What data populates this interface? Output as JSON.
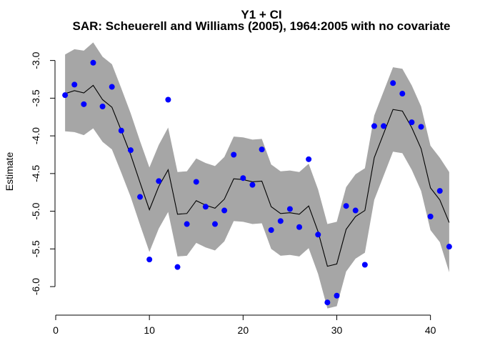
{
  "chart_data": {
    "type": "line",
    "title": "Y1 + CI",
    "subtitle": "SAR: Scheuerell and Williams (2005), 1964:2005 with no covariate",
    "xlabel": "",
    "ylabel": "Estimate",
    "xlim": [
      0,
      43
    ],
    "ylim": [
      -6.35,
      -2.7
    ],
    "x_ticks": [
      0,
      10,
      20,
      30,
      40
    ],
    "y_ticks": [
      -6.0,
      -5.5,
      -5.0,
      -4.5,
      -4.0,
      -3.5,
      -3.0
    ],
    "y_tick_labels": [
      "-6.0",
      "-5.5",
      "-5.0",
      "-4.5",
      "-4.0",
      "-3.5",
      "-3.0"
    ],
    "grid": false,
    "legend": "none",
    "colors": {
      "ci_band": "#a6a6a6",
      "estimate_line": "#000000",
      "observations": "#0000ff"
    },
    "x": [
      1,
      2,
      3,
      4,
      5,
      6,
      7,
      8,
      9,
      10,
      11,
      12,
      13,
      14,
      15,
      16,
      17,
      18,
      19,
      20,
      21,
      22,
      23,
      24,
      25,
      26,
      27,
      28,
      29,
      30,
      31,
      32,
      33,
      34,
      35,
      36,
      37,
      38,
      39,
      40,
      41,
      42
    ],
    "series": [
      {
        "type": "line",
        "values": [
          -3.44,
          -3.4,
          -3.43,
          -3.33,
          -3.52,
          -3.62,
          -3.93,
          -4.25,
          -4.62,
          -4.98,
          -4.67,
          -4.45,
          -5.04,
          -5.03,
          -4.86,
          -4.92,
          -4.96,
          -4.84,
          -4.57,
          -4.58,
          -4.61,
          -4.6,
          -4.94,
          -5.03,
          -5.02,
          -5.04,
          -4.93,
          -5.27,
          -5.73,
          -5.7,
          -5.24,
          -5.07,
          -4.99,
          -4.29,
          -3.97,
          -3.65,
          -3.67,
          -3.89,
          -4.17,
          -4.69,
          -4.85,
          -5.15
        ]
      },
      {
        "type": "band",
        "upper": [
          -2.92,
          -2.85,
          -2.87,
          -2.76,
          -2.95,
          -3.05,
          -3.37,
          -3.7,
          -4.07,
          -4.42,
          -4.12,
          -3.89,
          -4.48,
          -4.47,
          -4.3,
          -4.36,
          -4.4,
          -4.28,
          -4.01,
          -4.02,
          -4.05,
          -4.04,
          -4.38,
          -4.47,
          -4.46,
          -4.48,
          -4.37,
          -4.71,
          -5.17,
          -5.14,
          -4.68,
          -4.51,
          -4.43,
          -3.73,
          -3.41,
          -3.09,
          -3.11,
          -3.33,
          -3.61,
          -4.13,
          -4.29,
          -4.48
        ],
        "lower": [
          -3.94,
          -3.95,
          -3.99,
          -3.9,
          -4.08,
          -4.18,
          -4.49,
          -4.81,
          -5.18,
          -5.54,
          -5.23,
          -5.01,
          -5.6,
          -5.59,
          -5.42,
          -5.48,
          -5.52,
          -5.4,
          -5.13,
          -5.14,
          -5.17,
          -5.16,
          -5.5,
          -5.59,
          -5.58,
          -5.6,
          -5.49,
          -5.83,
          -6.29,
          -6.26,
          -5.8,
          -5.63,
          -5.55,
          -4.85,
          -4.53,
          -4.21,
          -4.23,
          -4.45,
          -4.73,
          -5.25,
          -5.41,
          -5.81
        ]
      },
      {
        "type": "scatter",
        "values": [
          -3.46,
          -3.32,
          -3.58,
          -3.03,
          -3.61,
          -3.35,
          -3.93,
          -4.19,
          -4.81,
          -5.64,
          -4.6,
          -3.52,
          -5.74,
          -5.17,
          -4.61,
          -4.94,
          -5.17,
          -4.99,
          -4.25,
          -4.56,
          -4.65,
          -4.18,
          -5.25,
          -5.13,
          -4.97,
          -5.21,
          -4.31,
          -5.31,
          -6.21,
          -6.12,
          -4.93,
          -4.99,
          -5.71,
          -3.87,
          -3.87,
          -3.3,
          -3.44,
          -3.82,
          -3.88,
          -5.07,
          -4.73,
          -5.47
        ]
      }
    ]
  }
}
